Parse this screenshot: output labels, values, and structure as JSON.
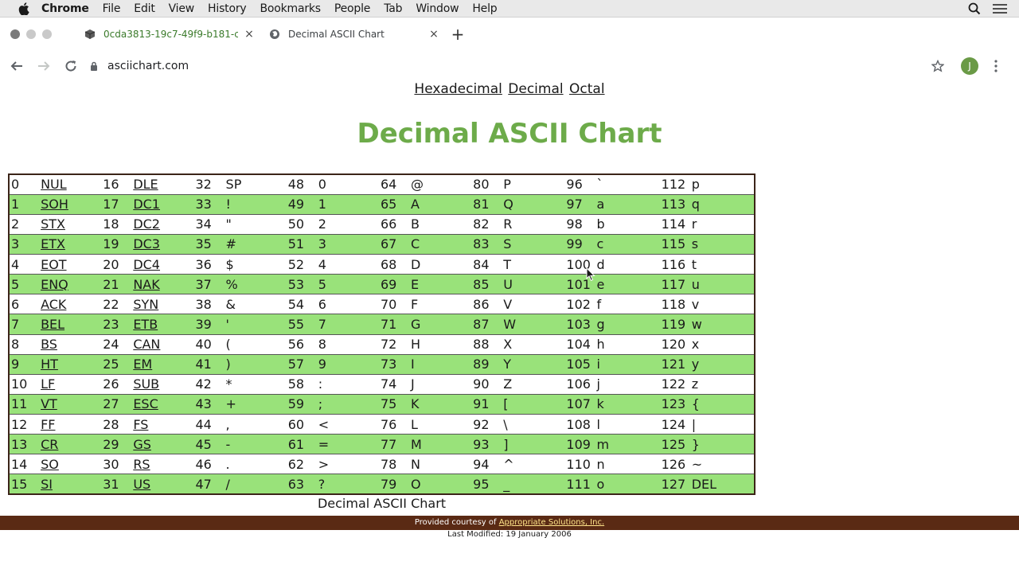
{
  "menubar": {
    "app": "Chrome",
    "items": [
      "File",
      "Edit",
      "View",
      "History",
      "Bookmarks",
      "People",
      "Tab",
      "Window",
      "Help"
    ],
    "icons": [
      "apple-icon",
      "search-icon",
      "control-center-icon"
    ]
  },
  "tabs": [
    {
      "title": "0cda3813-19c7-49f9-b181-c0",
      "close": "×"
    },
    {
      "title": "Decimal ASCII Chart",
      "close": "×"
    }
  ],
  "newtab": "+",
  "toolbar": {
    "url": "asciichart.com",
    "avatar_initial": "J"
  },
  "page": {
    "nav": [
      "Hexadecimal",
      "Decimal",
      "Octal"
    ],
    "title": "Decimal ASCII Chart",
    "caption": "Decimal ASCII Chart",
    "footer_prefix": "Provided courtesy of ",
    "footer_link": "Appropriate Solutions, Inc.",
    "modified": "Last Modified: 19 January 2006"
  },
  "ascii_table": {
    "rows": [
      [
        [
          "0",
          "NUL"
        ],
        [
          "16",
          "DLE"
        ],
        [
          "32",
          "SP"
        ],
        [
          "48",
          "0"
        ],
        [
          "64",
          "@"
        ],
        [
          "80",
          "P"
        ],
        [
          "96",
          "`"
        ],
        [
          "112",
          "p"
        ]
      ],
      [
        [
          "1",
          "SOH"
        ],
        [
          "17",
          "DC1"
        ],
        [
          "33",
          "!"
        ],
        [
          "49",
          "1"
        ],
        [
          "65",
          "A"
        ],
        [
          "81",
          "Q"
        ],
        [
          "97",
          "a"
        ],
        [
          "113",
          "q"
        ]
      ],
      [
        [
          "2",
          "STX"
        ],
        [
          "18",
          "DC2"
        ],
        [
          "34",
          "\""
        ],
        [
          "50",
          "2"
        ],
        [
          "66",
          "B"
        ],
        [
          "82",
          "R"
        ],
        [
          "98",
          "b"
        ],
        [
          "114",
          "r"
        ]
      ],
      [
        [
          "3",
          "ETX"
        ],
        [
          "19",
          "DC3"
        ],
        [
          "35",
          "#"
        ],
        [
          "51",
          "3"
        ],
        [
          "67",
          "C"
        ],
        [
          "83",
          "S"
        ],
        [
          "99",
          "c"
        ],
        [
          "115",
          "s"
        ]
      ],
      [
        [
          "4",
          "EOT"
        ],
        [
          "20",
          "DC4"
        ],
        [
          "36",
          "$"
        ],
        [
          "52",
          "4"
        ],
        [
          "68",
          "D"
        ],
        [
          "84",
          "T"
        ],
        [
          "100",
          "d"
        ],
        [
          "116",
          "t"
        ]
      ],
      [
        [
          "5",
          "ENQ"
        ],
        [
          "21",
          "NAK"
        ],
        [
          "37",
          "%"
        ],
        [
          "53",
          "5"
        ],
        [
          "69",
          "E"
        ],
        [
          "85",
          "U"
        ],
        [
          "101",
          "e"
        ],
        [
          "117",
          "u"
        ]
      ],
      [
        [
          "6",
          "ACK"
        ],
        [
          "22",
          "SYN"
        ],
        [
          "38",
          "&"
        ],
        [
          "54",
          "6"
        ],
        [
          "70",
          "F"
        ],
        [
          "86",
          "V"
        ],
        [
          "102",
          "f"
        ],
        [
          "118",
          "v"
        ]
      ],
      [
        [
          "7",
          "BEL"
        ],
        [
          "23",
          "ETB"
        ],
        [
          "39",
          "'"
        ],
        [
          "55",
          "7"
        ],
        [
          "71",
          "G"
        ],
        [
          "87",
          "W"
        ],
        [
          "103",
          "g"
        ],
        [
          "119",
          "w"
        ]
      ],
      [
        [
          "8",
          "BS"
        ],
        [
          "24",
          "CAN"
        ],
        [
          "40",
          "("
        ],
        [
          "56",
          "8"
        ],
        [
          "72",
          "H"
        ],
        [
          "88",
          "X"
        ],
        [
          "104",
          "h"
        ],
        [
          "120",
          "x"
        ]
      ],
      [
        [
          "9",
          "HT"
        ],
        [
          "25",
          "EM"
        ],
        [
          "41",
          ")"
        ],
        [
          "57",
          "9"
        ],
        [
          "73",
          "I"
        ],
        [
          "89",
          "Y"
        ],
        [
          "105",
          "i"
        ],
        [
          "121",
          "y"
        ]
      ],
      [
        [
          "10",
          "LF"
        ],
        [
          "26",
          "SUB"
        ],
        [
          "42",
          "*"
        ],
        [
          "58",
          ":"
        ],
        [
          "74",
          "J"
        ],
        [
          "90",
          "Z"
        ],
        [
          "106",
          "j"
        ],
        [
          "122",
          "z"
        ]
      ],
      [
        [
          "11",
          "VT"
        ],
        [
          "27",
          "ESC"
        ],
        [
          "43",
          "+"
        ],
        [
          "59",
          ";"
        ],
        [
          "75",
          "K"
        ],
        [
          "91",
          "["
        ],
        [
          "107",
          "k"
        ],
        [
          "123",
          "{"
        ]
      ],
      [
        [
          "12",
          "FF"
        ],
        [
          "28",
          "FS"
        ],
        [
          "44",
          ","
        ],
        [
          "60",
          "<"
        ],
        [
          "76",
          "L"
        ],
        [
          "92",
          "\\"
        ],
        [
          "108",
          "l"
        ],
        [
          "124",
          "|"
        ]
      ],
      [
        [
          "13",
          "CR"
        ],
        [
          "29",
          "GS"
        ],
        [
          "45",
          "-"
        ],
        [
          "61",
          "="
        ],
        [
          "77",
          "M"
        ],
        [
          "93",
          "]"
        ],
        [
          "109",
          "m"
        ],
        [
          "125",
          "}"
        ]
      ],
      [
        [
          "14",
          "SO"
        ],
        [
          "30",
          "RS"
        ],
        [
          "46",
          "."
        ],
        [
          "62",
          ">"
        ],
        [
          "78",
          "N"
        ],
        [
          "94",
          "^"
        ],
        [
          "110",
          "n"
        ],
        [
          "126",
          "~"
        ]
      ],
      [
        [
          "15",
          "SI"
        ],
        [
          "31",
          "US"
        ],
        [
          "47",
          "/"
        ],
        [
          "63",
          "?"
        ],
        [
          "79",
          "O"
        ],
        [
          "95",
          "_"
        ],
        [
          "111",
          "o"
        ],
        [
          "127",
          "DEL"
        ]
      ]
    ],
    "linked_columns": [
      0,
      1
    ],
    "linked_extra": [
      [
        "0",
        2
      ],
      [
        "15",
        7
      ]
    ]
  },
  "colors": {
    "title_green": "#6dab4a",
    "row_green": "#99e27a",
    "footer_brown": "#5a2a14"
  }
}
